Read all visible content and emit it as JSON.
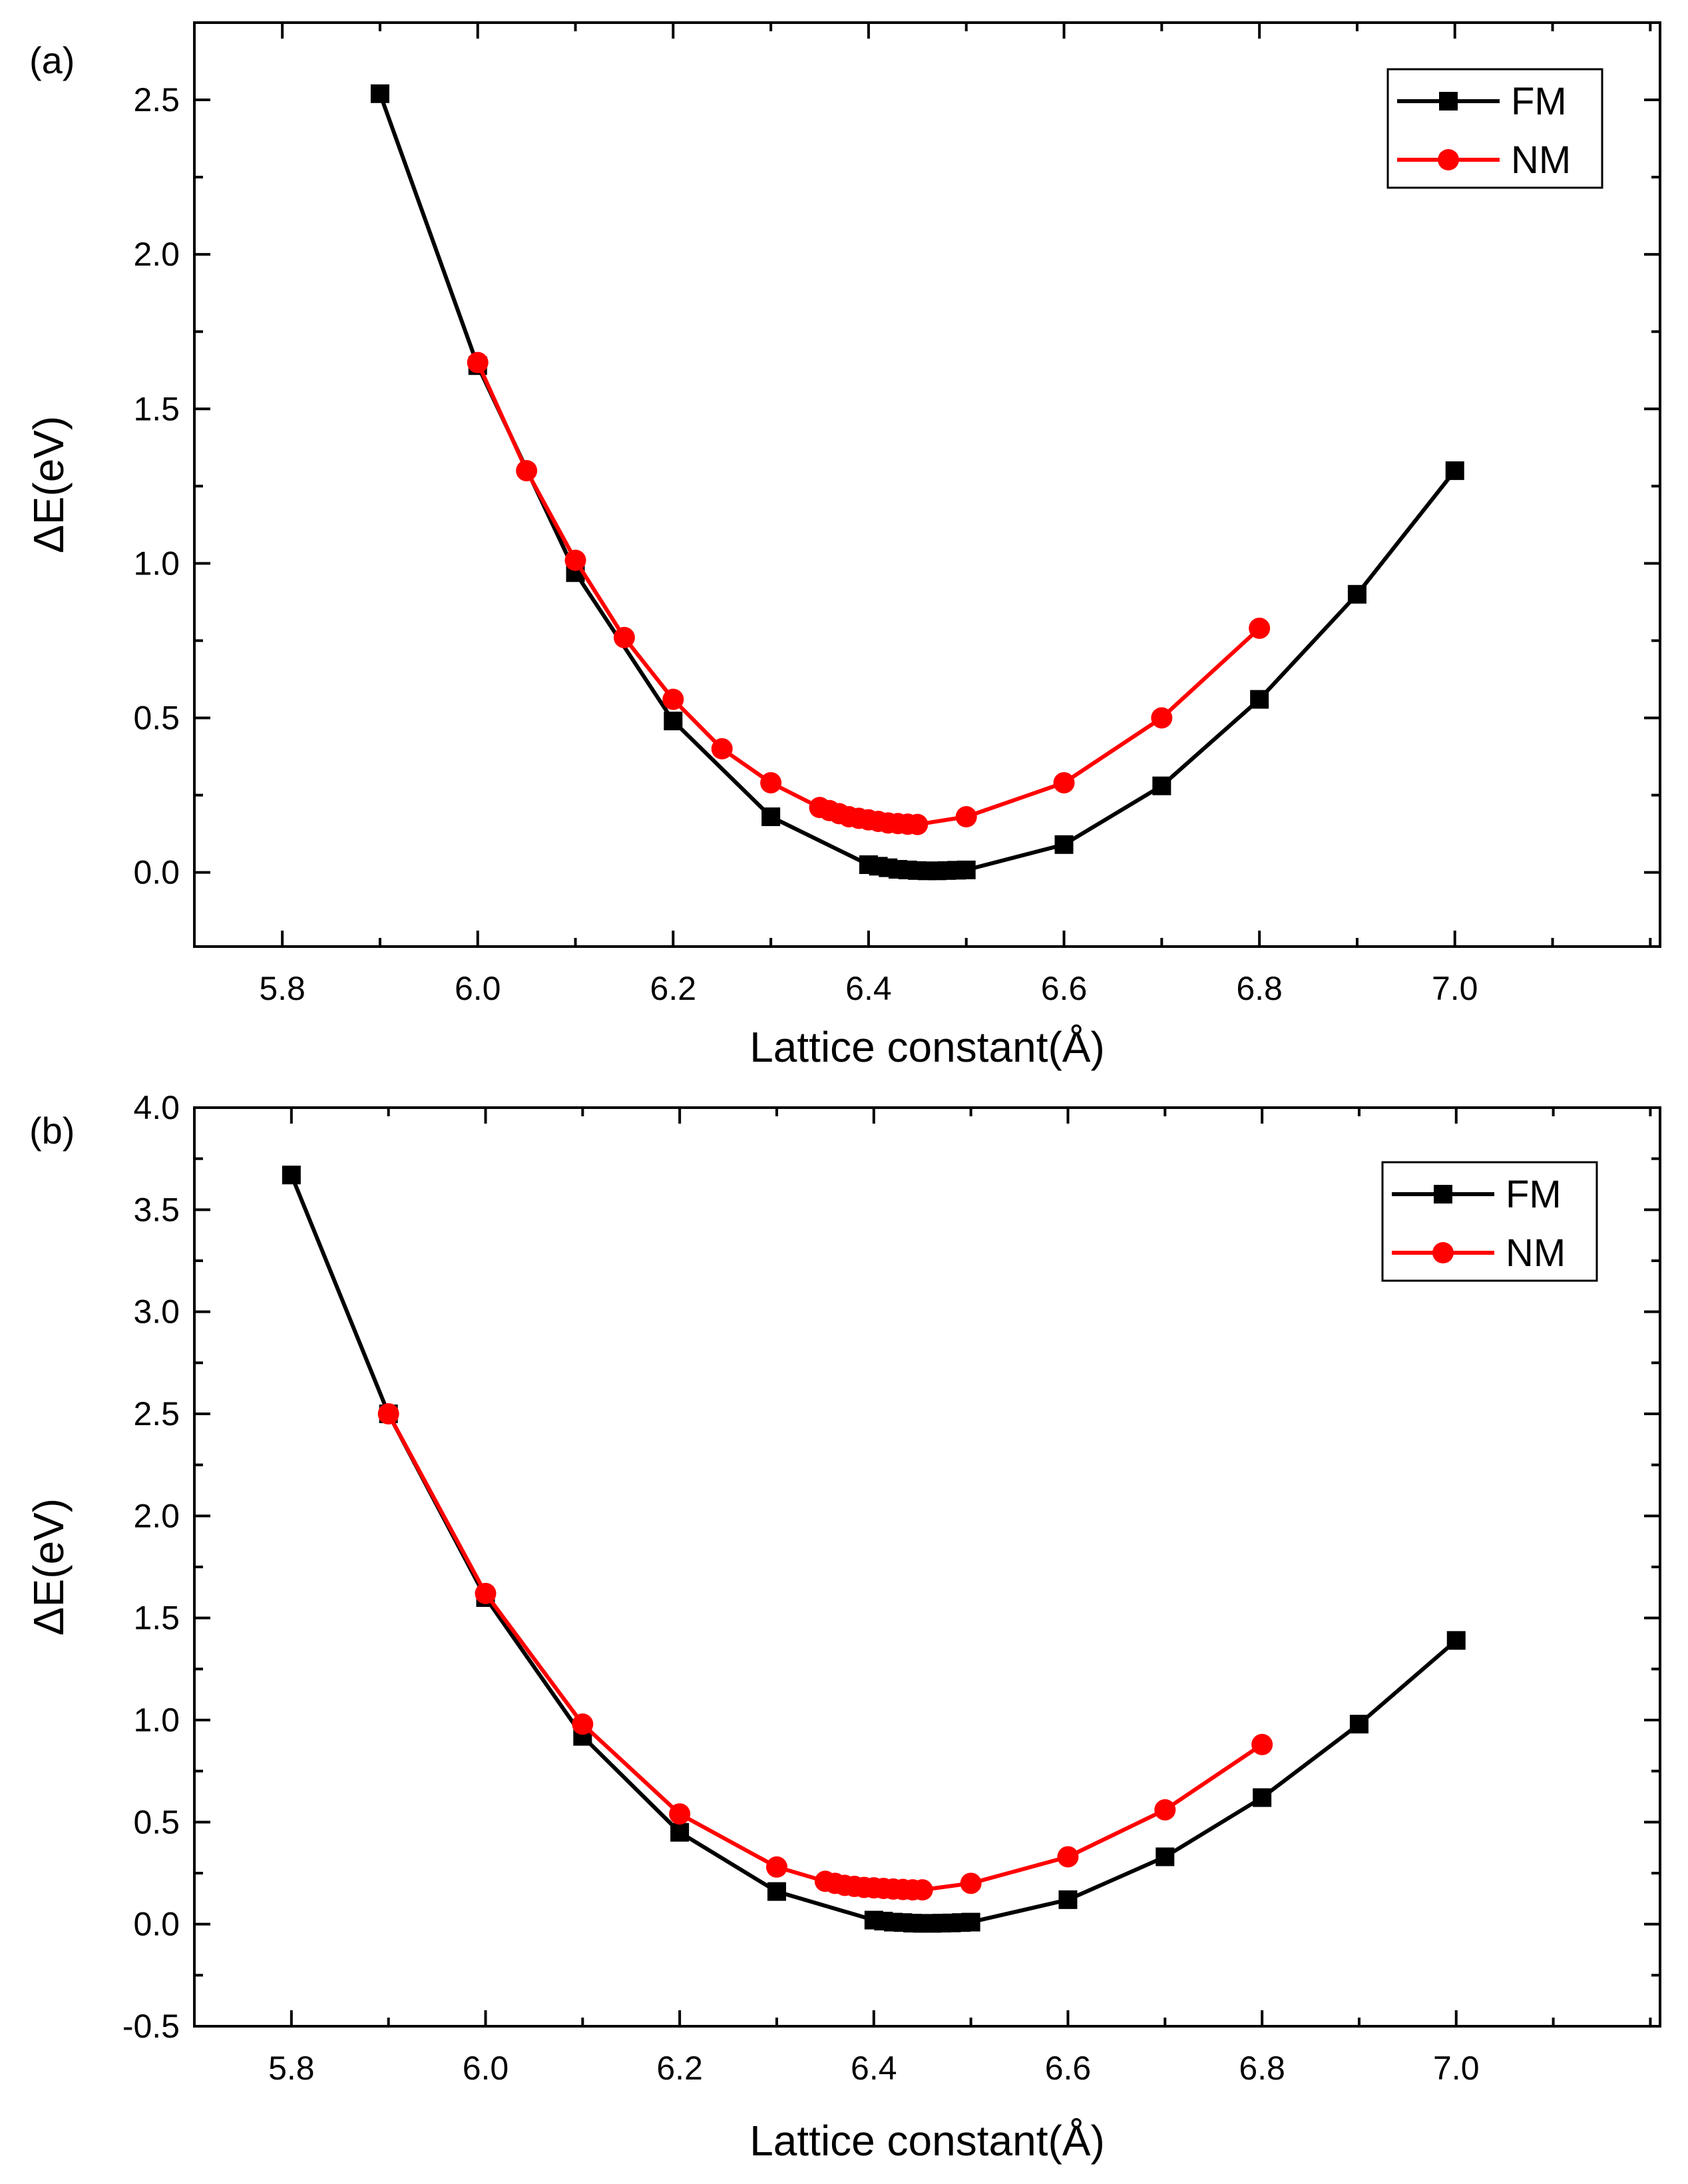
{
  "colors": {
    "fm": "#000000",
    "nm": "#ff0000",
    "axis": "#000000",
    "background": "#ffffff"
  },
  "chart_data": [
    {
      "type": "line",
      "panel_label": "(a)",
      "xlabel": "Lattice constant(Å)",
      "ylabel": "ΔE(eV)",
      "xlim": [
        5.71,
        7.21
      ],
      "ylim": [
        -0.24,
        2.75
      ],
      "xticks": [
        5.8,
        6.0,
        6.2,
        6.4,
        6.6,
        6.8,
        7.0
      ],
      "xtick_labels": [
        "5.8",
        "6.0",
        "6.2",
        "6.4",
        "6.6",
        "6.8",
        "7.0"
      ],
      "yticks": [
        0.0,
        0.5,
        1.0,
        1.5,
        2.0,
        2.5
      ],
      "ytick_labels": [
        "0.0",
        "0.5",
        "1.0",
        "1.5",
        "2.0",
        "2.5"
      ],
      "legend_position": "top-right",
      "grid": false,
      "series": [
        {
          "name": "FM",
          "marker": "square",
          "x": [
            5.9,
            6.0,
            6.1,
            6.2,
            6.3,
            6.4,
            6.41,
            6.42,
            6.43,
            6.44,
            6.45,
            6.46,
            6.47,
            6.48,
            6.49,
            6.5,
            6.6,
            6.7,
            6.8,
            6.9,
            7.0
          ],
          "y": [
            2.52,
            1.64,
            0.97,
            0.49,
            0.18,
            0.025,
            0.02,
            0.015,
            0.01,
            0.008,
            0.006,
            0.005,
            0.005,
            0.006,
            0.007,
            0.008,
            0.09,
            0.28,
            0.56,
            0.9,
            1.3
          ]
        },
        {
          "name": "NM",
          "marker": "circle",
          "x": [
            6.0,
            6.05,
            6.1,
            6.15,
            6.2,
            6.25,
            6.3,
            6.35,
            6.36,
            6.37,
            6.38,
            6.39,
            6.4,
            6.41,
            6.42,
            6.43,
            6.44,
            6.45,
            6.5,
            6.6,
            6.7,
            6.8
          ],
          "y": [
            1.65,
            1.3,
            1.01,
            0.76,
            0.56,
            0.4,
            0.29,
            0.21,
            0.2,
            0.19,
            0.18,
            0.175,
            0.17,
            0.165,
            0.16,
            0.158,
            0.156,
            0.155,
            0.18,
            0.29,
            0.5,
            0.79
          ]
        }
      ]
    },
    {
      "type": "line",
      "panel_label": "(b)",
      "xlabel": "Lattice constant(Å)",
      "ylabel": "ΔE(eV)",
      "xlim": [
        5.7,
        7.21
      ],
      "ylim": [
        -0.5,
        4.0
      ],
      "xticks": [
        5.8,
        6.0,
        6.2,
        6.4,
        6.6,
        6.8,
        7.0
      ],
      "xtick_labels": [
        "5.8",
        "6.0",
        "6.2",
        "6.4",
        "6.6",
        "6.8",
        "7.0"
      ],
      "yticks": [
        -0.5,
        0.0,
        0.5,
        1.0,
        1.5,
        2.0,
        2.5,
        3.0,
        3.5,
        4.0
      ],
      "ytick_labels": [
        "-0.5",
        "0.0",
        "0.5",
        "1.0",
        "1.5",
        "2.0",
        "2.5",
        "3.0",
        "3.5",
        "4.0"
      ],
      "legend_position": "top-right",
      "grid": false,
      "series": [
        {
          "name": "FM",
          "marker": "square",
          "x": [
            5.8,
            5.9,
            6.0,
            6.1,
            6.2,
            6.3,
            6.4,
            6.41,
            6.42,
            6.43,
            6.44,
            6.45,
            6.46,
            6.47,
            6.48,
            6.49,
            6.5,
            6.6,
            6.7,
            6.8,
            6.9,
            7.0
          ],
          "y": [
            3.67,
            2.5,
            1.6,
            0.92,
            0.45,
            0.16,
            0.02,
            0.015,
            0.01,
            0.008,
            0.005,
            0.004,
            0.004,
            0.005,
            0.006,
            0.008,
            0.01,
            0.12,
            0.33,
            0.62,
            0.98,
            1.39
          ]
        },
        {
          "name": "NM",
          "marker": "circle",
          "x": [
            5.9,
            6.0,
            6.1,
            6.2,
            6.3,
            6.35,
            6.36,
            6.37,
            6.38,
            6.39,
            6.4,
            6.41,
            6.42,
            6.43,
            6.44,
            6.45,
            6.5,
            6.6,
            6.7,
            6.8
          ],
          "y": [
            2.5,
            1.62,
            0.98,
            0.54,
            0.28,
            0.21,
            0.2,
            0.19,
            0.185,
            0.18,
            0.178,
            0.175,
            0.172,
            0.17,
            0.168,
            0.168,
            0.2,
            0.33,
            0.56,
            0.88
          ]
        }
      ]
    }
  ]
}
